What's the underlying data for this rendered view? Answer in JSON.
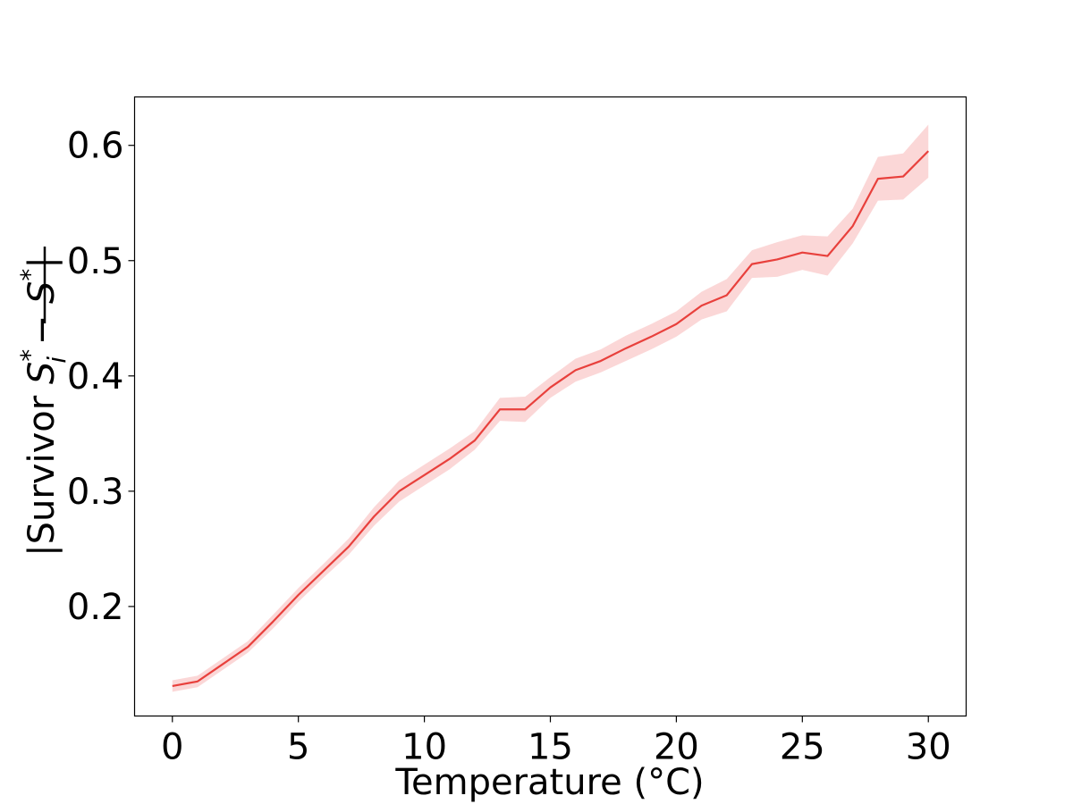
{
  "chart_data": {
    "type": "line",
    "xlabel": "Temperature (°C)",
    "ylabel_parts": {
      "pre": "|Survivor ",
      "s": "S",
      "star": "*",
      "sub_i": "i",
      "minus": " − ",
      "bar_s": "S",
      "bar_star": "*",
      "post": "|"
    },
    "xlim": [
      -1.5,
      31.5
    ],
    "ylim": [
      0.105,
      0.642
    ],
    "xticks": [
      0,
      5,
      10,
      15,
      20,
      25,
      30
    ],
    "xtick_labels": [
      "0",
      "5",
      "10",
      "15",
      "20",
      "25",
      "30"
    ],
    "yticks": [
      0.2,
      0.3,
      0.4,
      0.5,
      0.6
    ],
    "ytick_labels": [
      "0.2",
      "0.3",
      "0.4",
      "0.5",
      "0.6"
    ],
    "grid": false,
    "series": [
      {
        "color": "#e8403c",
        "band_color": "#f9c9c9",
        "x": [
          0,
          1,
          2,
          3,
          4,
          5,
          6,
          7,
          8,
          9,
          10,
          11,
          12,
          13,
          14,
          15,
          16,
          17,
          18,
          19,
          20,
          21,
          22,
          23,
          24,
          25,
          26,
          27,
          28,
          29,
          30
        ],
        "y": [
          0.131,
          0.135,
          0.15,
          0.165,
          0.187,
          0.21,
          0.231,
          0.252,
          0.278,
          0.3,
          0.314,
          0.328,
          0.344,
          0.371,
          0.371,
          0.39,
          0.405,
          0.413,
          0.424,
          0.434,
          0.445,
          0.461,
          0.47,
          0.497,
          0.501,
          0.507,
          0.504,
          0.53,
          0.571,
          0.573,
          0.595
        ],
        "y_lower": [
          0.126,
          0.13,
          0.145,
          0.16,
          0.181,
          0.204,
          0.225,
          0.245,
          0.27,
          0.291,
          0.305,
          0.319,
          0.336,
          0.361,
          0.36,
          0.381,
          0.395,
          0.403,
          0.413,
          0.423,
          0.434,
          0.449,
          0.456,
          0.485,
          0.486,
          0.492,
          0.487,
          0.515,
          0.552,
          0.553,
          0.572
        ],
        "y_upper": [
          0.136,
          0.14,
          0.155,
          0.17,
          0.193,
          0.216,
          0.237,
          0.259,
          0.286,
          0.309,
          0.323,
          0.337,
          0.352,
          0.381,
          0.382,
          0.399,
          0.415,
          0.423,
          0.435,
          0.445,
          0.456,
          0.473,
          0.484,
          0.509,
          0.516,
          0.522,
          0.521,
          0.545,
          0.59,
          0.593,
          0.618
        ]
      }
    ]
  }
}
